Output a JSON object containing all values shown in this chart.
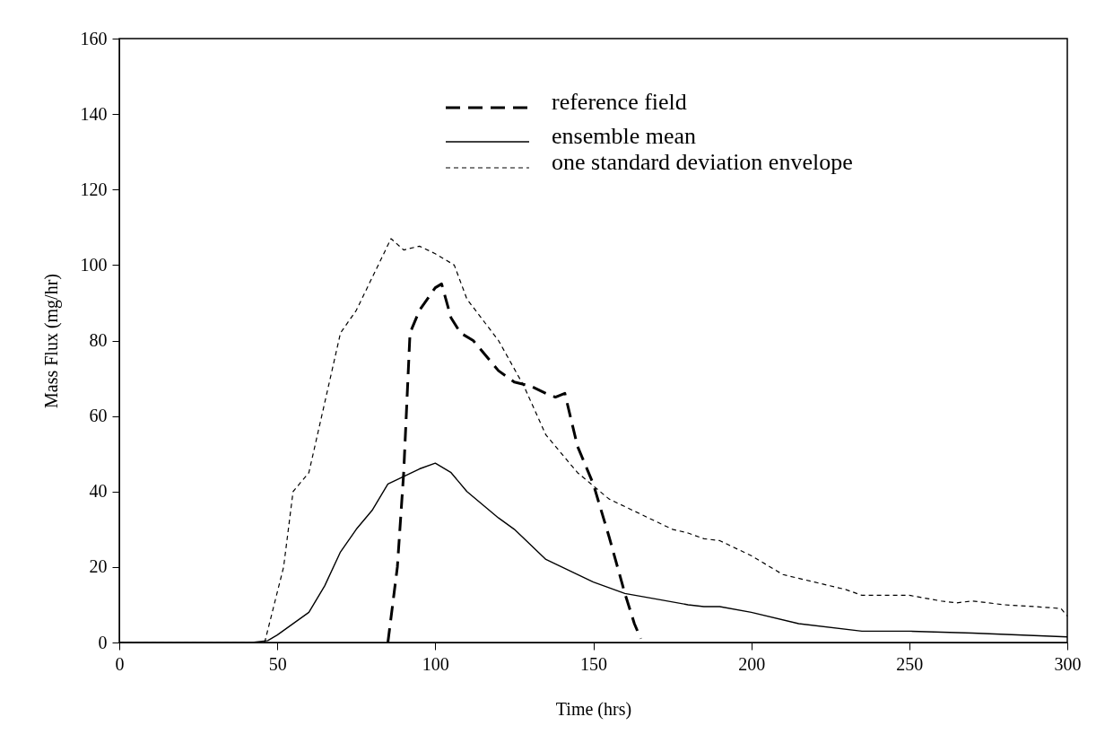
{
  "chart_data": {
    "type": "line",
    "xlabel": "Time (hrs)",
    "ylabel": "Mass Flux (mg/hr)",
    "xlim": [
      0,
      300
    ],
    "ylim": [
      0,
      160
    ],
    "xticks": [
      0,
      50,
      100,
      150,
      200,
      250,
      300
    ],
    "yticks": [
      0,
      20,
      40,
      60,
      80,
      100,
      120,
      140,
      160
    ],
    "grid": false,
    "legend": "top right",
    "marker": "none",
    "series": [
      {
        "name": "reference field",
        "color": "#000000",
        "line_style": "dashed",
        "x": [
          85,
          88,
          90,
          92,
          95,
          100,
          102,
          105,
          108,
          112,
          120,
          125,
          130,
          135,
          138,
          141,
          145,
          150,
          155,
          160,
          163,
          165
        ],
        "values": [
          0,
          20,
          45,
          82,
          88,
          94,
          95,
          86,
          82,
          80,
          72,
          69,
          68,
          66,
          65,
          66,
          52,
          42,
          28,
          13,
          5,
          1
        ]
      },
      {
        "name": "ensemble mean",
        "color": "#000000",
        "line_style": "solid",
        "x": [
          0,
          42,
          47,
          50,
          60,
          65,
          70,
          75,
          80,
          85,
          95,
          100,
          105,
          110,
          120,
          125,
          135,
          150,
          160,
          170,
          180,
          185,
          190,
          200,
          215,
          235,
          250,
          270,
          300
        ],
        "values": [
          0,
          0,
          0.5,
          2,
          8,
          15,
          24,
          30,
          35,
          42,
          46,
          47.5,
          45,
          40,
          33,
          30,
          22,
          16,
          13,
          11.5,
          10,
          9.5,
          9.5,
          8,
          5,
          3,
          3,
          2.5,
          1.5
        ]
      },
      {
        "name": "one standard deviation envelope",
        "color": "#000000",
        "line_style": "dotted",
        "x": [
          0,
          46,
          52,
          55,
          60,
          70,
          75,
          86,
          90,
          95,
          100,
          106,
          110,
          120,
          128,
          135,
          145,
          155,
          165,
          175,
          180,
          185,
          190,
          200,
          210,
          220,
          230,
          235,
          250,
          260,
          265,
          270,
          280,
          290,
          298,
          300
        ],
        "values": [
          0,
          0,
          20,
          40,
          45,
          82,
          88,
          107,
          104,
          105,
          103,
          100,
          91,
          80,
          68,
          55,
          45,
          38,
          34,
          30,
          29,
          27.5,
          27,
          23,
          18,
          16,
          14,
          12.5,
          12.5,
          11,
          10.5,
          11,
          10,
          9.5,
          9,
          7
        ]
      }
    ]
  }
}
